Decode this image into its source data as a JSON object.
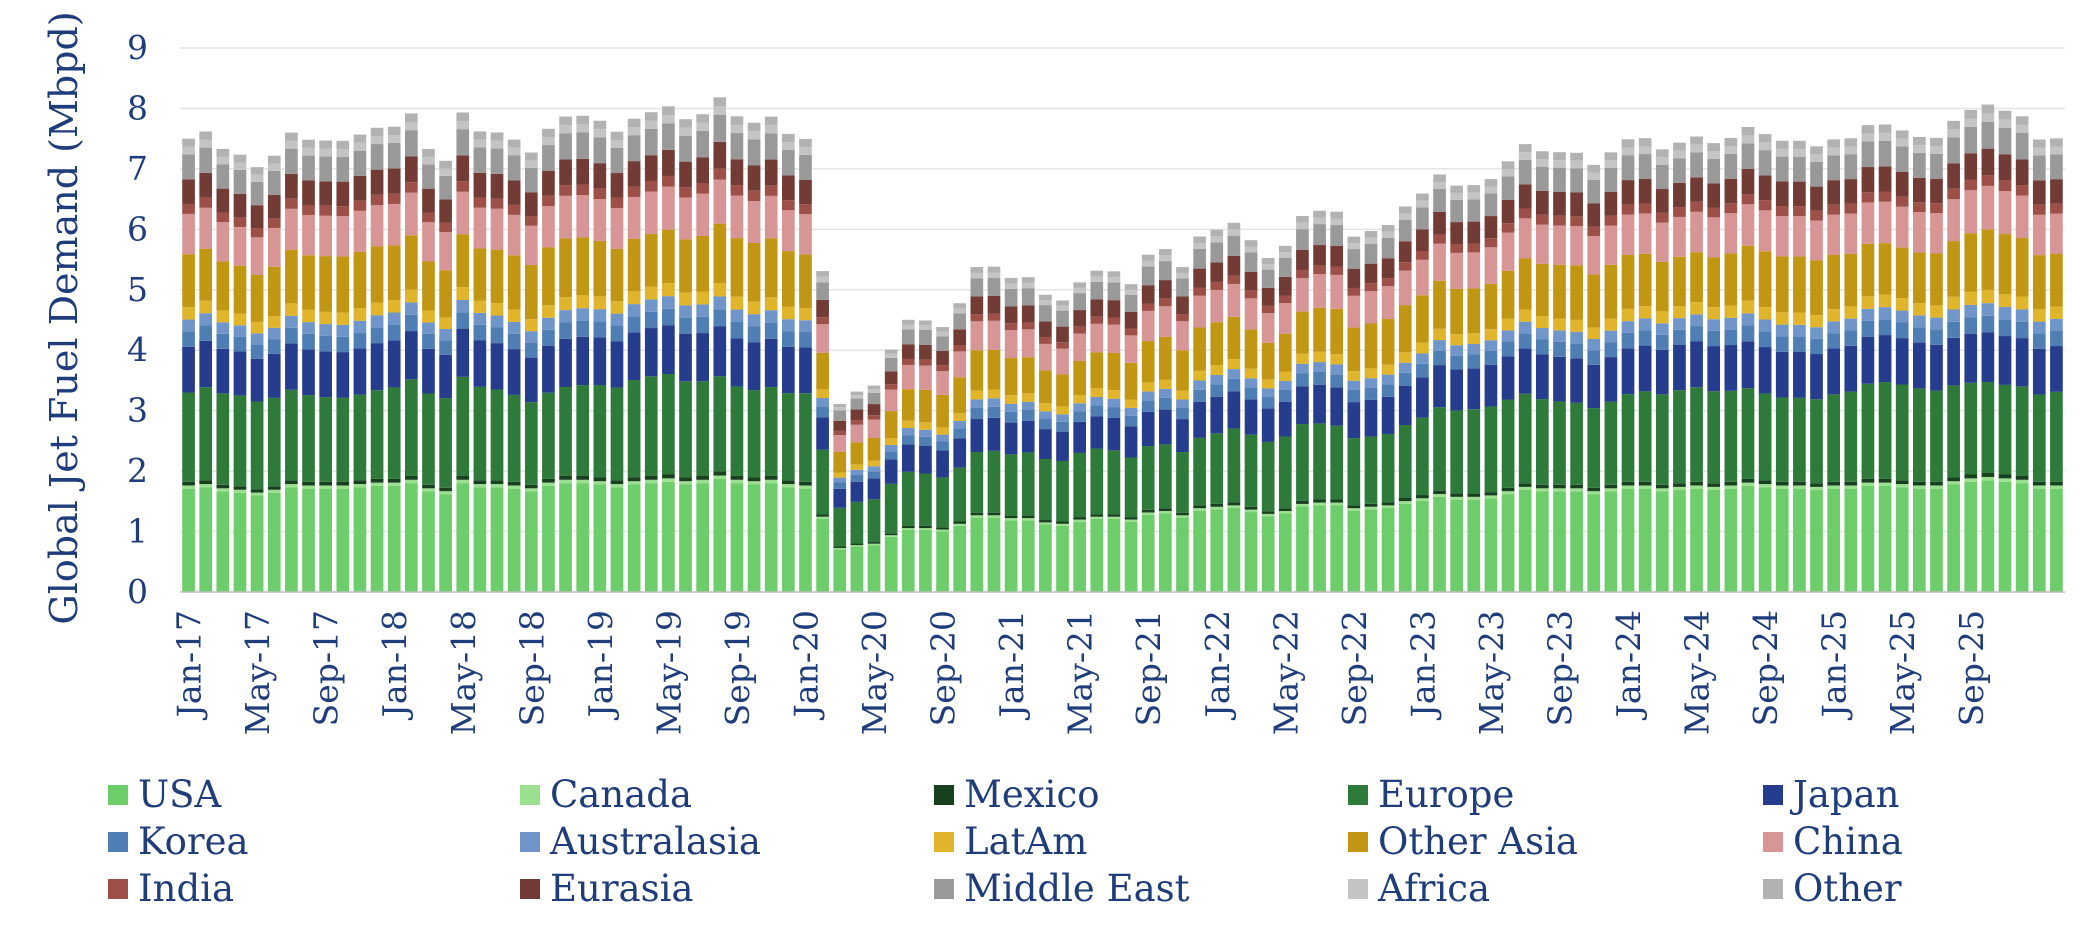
{
  "chart_data": {
    "type": "bar",
    "stacked": true,
    "title": "",
    "xlabel": "",
    "ylabel": "Global Jet Fuel Demand (Mbpd)",
    "ylim": [
      0,
      9
    ],
    "yticks": [
      "0",
      "1",
      "2",
      "3",
      "4",
      "5",
      "6",
      "7",
      "8",
      "9"
    ],
    "grid": true,
    "legend_position": "bottom",
    "x_tick_labels": [
      {
        "label": "Jan-17",
        "index": 0
      },
      {
        "label": "May-17",
        "index": 4
      },
      {
        "label": "Sep-17",
        "index": 8
      },
      {
        "label": "Jan-18",
        "index": 12
      },
      {
        "label": "May-18",
        "index": 16
      },
      {
        "label": "Sep-18",
        "index": 20
      },
      {
        "label": "Jan-19",
        "index": 24
      },
      {
        "label": "May-19",
        "index": 28
      },
      {
        "label": "Sep-19",
        "index": 32
      },
      {
        "label": "Jan-20",
        "index": 36
      },
      {
        "label": "May-20",
        "index": 40
      },
      {
        "label": "Sep-20",
        "index": 44
      },
      {
        "label": "Jan-21",
        "index": 48
      },
      {
        "label": "May-21",
        "index": 52
      },
      {
        "label": "Sep-21",
        "index": 56
      },
      {
        "label": "Jan-22",
        "index": 60
      },
      {
        "label": "May-22",
        "index": 64
      },
      {
        "label": "Sep-22",
        "index": 68
      },
      {
        "label": "Jan-23",
        "index": 72
      },
      {
        "label": "May-23",
        "index": 76
      },
      {
        "label": "Sep-23",
        "index": 80
      },
      {
        "label": "Jan-24",
        "index": 84
      },
      {
        "label": "May-24",
        "index": 88
      },
      {
        "label": "Sep-24",
        "index": 92
      },
      {
        "label": "Jan-25",
        "index": 96
      },
      {
        "label": "May-25",
        "index": 100
      },
      {
        "label": "Sep-25",
        "index": 104
      }
    ],
    "categories": [
      "Jan-17",
      "Feb-17",
      "Mar-17",
      "Apr-17",
      "May-17",
      "Jun-17",
      "Jul-17",
      "Aug-17",
      "Sep-17",
      "Oct-17",
      "Nov-17",
      "Dec-17",
      "Jan-18",
      "Feb-18",
      "Mar-18",
      "Apr-18",
      "May-18",
      "Jun-18",
      "Jul-18",
      "Aug-18",
      "Sep-18",
      "Oct-18",
      "Nov-18",
      "Dec-18",
      "Jan-19",
      "Feb-19",
      "Mar-19",
      "Apr-19",
      "May-19",
      "Jun-19",
      "Jul-19",
      "Aug-19",
      "Sep-19",
      "Oct-19",
      "Nov-19",
      "Dec-19",
      "Jan-20",
      "Feb-20",
      "Mar-20",
      "Apr-20",
      "May-20",
      "Jun-20",
      "Jul-20",
      "Aug-20",
      "Sep-20",
      "Oct-20",
      "Nov-20",
      "Dec-20",
      "Jan-21",
      "Feb-21",
      "Mar-21",
      "Apr-21",
      "May-21",
      "Jun-21",
      "Jul-21",
      "Aug-21",
      "Sep-21",
      "Oct-21",
      "Nov-21",
      "Dec-21",
      "Jan-22",
      "Feb-22",
      "Mar-22",
      "Apr-22",
      "May-22",
      "Jun-22",
      "Jul-22",
      "Aug-22",
      "Sep-22",
      "Oct-22",
      "Nov-22",
      "Dec-22",
      "Jan-23",
      "Feb-23",
      "Mar-23",
      "Apr-23",
      "May-23",
      "Jun-23",
      "Jul-23",
      "Aug-23",
      "Sep-23",
      "Oct-23",
      "Nov-23",
      "Dec-23",
      "Jan-24",
      "Feb-24",
      "Mar-24",
      "Apr-24",
      "May-24",
      "Jun-24",
      "Jul-24",
      "Aug-24",
      "Sep-24",
      "Oct-24",
      "Nov-24",
      "Dec-24",
      "Jan-25",
      "Feb-25",
      "Mar-25",
      "Apr-25",
      "May-25",
      "Jun-25",
      "Jul-25",
      "Aug-25",
      "Sep-25",
      "Oct-25",
      "Nov-25",
      "Dec-25"
    ],
    "totals": [
      7.5,
      7.6,
      7.3,
      7.2,
      7.0,
      7.2,
      7.6,
      7.5,
      7.5,
      7.5,
      7.6,
      7.7,
      7.7,
      7.9,
      7.3,
      7.1,
      7.9,
      7.6,
      7.6,
      7.5,
      7.3,
      7.7,
      7.9,
      7.9,
      7.8,
      7.6,
      7.8,
      7.9,
      8.0,
      7.8,
      7.9,
      8.2,
      7.9,
      7.8,
      7.9,
      7.6,
      7.5,
      5.3,
      3.1,
      3.3,
      3.4,
      4.0,
      4.5,
      4.5,
      4.4,
      4.8,
      5.4,
      5.4,
      5.2,
      5.2,
      4.9,
      4.8,
      5.1,
      5.3,
      5.3,
      5.1,
      5.6,
      5.7,
      5.4,
      5.9,
      6.0,
      6.1,
      5.8,
      5.5,
      5.7,
      6.2,
      6.3,
      6.3,
      5.9,
      6.0,
      6.1,
      6.4,
      6.6,
      6.9,
      6.7,
      6.7,
      6.8,
      7.1,
      7.4,
      7.3,
      7.3,
      7.3,
      7.1,
      7.3,
      7.5,
      7.5,
      7.3,
      7.4,
      7.5,
      7.4,
      7.5,
      7.7,
      7.6,
      7.5,
      7.5,
      7.4,
      7.5,
      7.5,
      7.7,
      7.7,
      7.6,
      7.5,
      7.5,
      7.8,
      8.0,
      8.1,
      8.0,
      7.9,
      7.5,
      7.5
    ],
    "shares": [
      {
        "name": "USA",
        "share": 0.228
      },
      {
        "name": "Canada",
        "share": 0.007
      },
      {
        "name": "Mexico",
        "share": 0.008
      },
      {
        "name": "Europe",
        "share": 0.197
      },
      {
        "name": "Japan",
        "share": 0.101
      },
      {
        "name": "Korea",
        "share": 0.034
      },
      {
        "name": "Australasia",
        "share": 0.026
      },
      {
        "name": "LatAm",
        "share": 0.027
      },
      {
        "name": "Other Asia",
        "share": 0.117
      },
      {
        "name": "China",
        "share": 0.089
      },
      {
        "name": "India",
        "share": 0.022
      },
      {
        "name": "Eurasia",
        "share": 0.054
      },
      {
        "name": "Middle East",
        "share": 0.055
      },
      {
        "name": "Africa",
        "share": 0.017
      },
      {
        "name": "Other",
        "share": 0.018
      }
    ],
    "series": [
      {
        "name": "USA",
        "color": "#6dcd6a"
      },
      {
        "name": "Canada",
        "color": "#9be08f"
      },
      {
        "name": "Mexico",
        "color": "#17401e"
      },
      {
        "name": "Europe",
        "color": "#2e7a3a"
      },
      {
        "name": "Japan",
        "color": "#263c8c"
      },
      {
        "name": "Korea",
        "color": "#4f7eb5"
      },
      {
        "name": "Australasia",
        "color": "#6f95c9"
      },
      {
        "name": "LatAm",
        "color": "#e0b52b"
      },
      {
        "name": "Other Asia",
        "color": "#c09612"
      },
      {
        "name": "China",
        "color": "#d79595"
      },
      {
        "name": "India",
        "color": "#9e4f47"
      },
      {
        "name": "Eurasia",
        "color": "#733b35"
      },
      {
        "name": "Middle East",
        "color": "#999999"
      },
      {
        "name": "Africa",
        "color": "#c4c4c4"
      },
      {
        "name": "Other",
        "color": "#b2b2b2"
      }
    ]
  },
  "legend": {
    "items": [
      "USA",
      "Canada",
      "Mexico",
      "Europe",
      "Japan",
      "Korea",
      "Australasia",
      "LatAm",
      "Other Asia",
      "China",
      "India",
      "Eurasia",
      "Middle East",
      "Africa",
      "Other"
    ]
  }
}
